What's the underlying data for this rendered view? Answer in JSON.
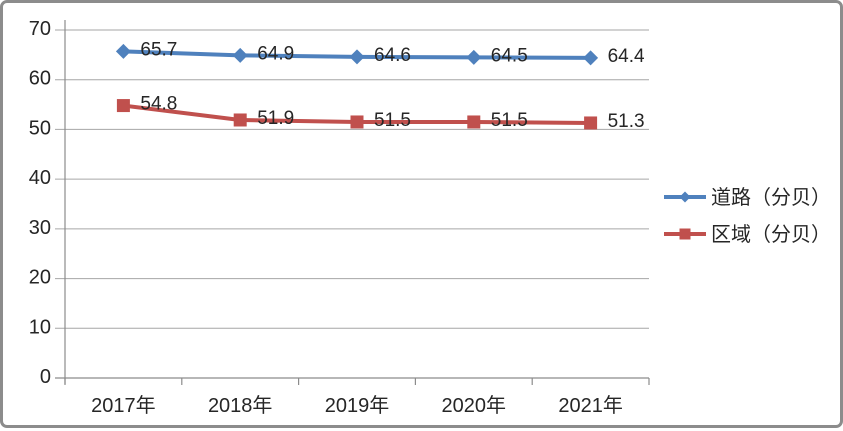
{
  "chart_data": {
    "type": "line",
    "categories": [
      "2017年",
      "2018年",
      "2019年",
      "2020年",
      "2021年"
    ],
    "series": [
      {
        "name": "道路（分贝）",
        "values": [
          65.7,
          64.9,
          64.6,
          64.5,
          64.4
        ],
        "color": "#4F81BD",
        "marker": "diamond"
      },
      {
        "name": "区域（分贝）",
        "values": [
          54.8,
          51.9,
          51.5,
          51.5,
          51.3
        ],
        "color": "#C0504D",
        "marker": "square"
      }
    ],
    "title": "",
    "xlabel": "",
    "ylabel": "",
    "ylim": [
      0,
      70
    ],
    "yticks": [
      0,
      10,
      20,
      30,
      40,
      50,
      60,
      70
    ],
    "grid": true,
    "legend_position": "right",
    "data_labels": true
  },
  "colors": {
    "grid": "#A6A6A6",
    "axis": "#8C8C8C",
    "text": "#262626",
    "frame_border": "#8C8C8C",
    "background": "#FFFFFF"
  }
}
